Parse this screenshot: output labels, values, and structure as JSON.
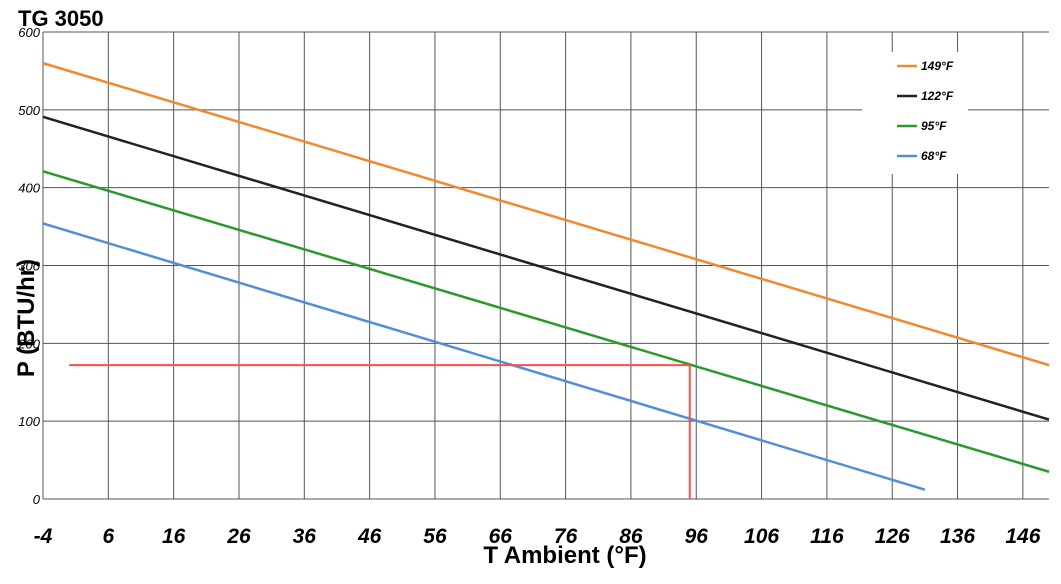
{
  "chart_data": {
    "type": "line",
    "title": "TG 3050",
    "xlabel": "T Ambient (°F)",
    "ylabel": "P (BTU/hr)",
    "xlim": [
      -4,
      150
    ],
    "ylim": [
      0,
      600
    ],
    "x_ticks": [
      -4,
      6,
      16,
      26,
      36,
      46,
      56,
      66,
      76,
      86,
      96,
      106,
      116,
      126,
      136,
      146
    ],
    "x_tick_labels": [
      "-4",
      "6",
      "16",
      "26",
      "36",
      "46",
      "56",
      "66",
      "76",
      "86",
      "96",
      "106",
      "116",
      "126",
      "136",
      "146"
    ],
    "y_ticks": [
      0,
      100,
      200,
      300,
      400,
      500,
      600
    ],
    "y_tick_labels": [
      "0",
      "100",
      "200",
      "300",
      "400",
      "500",
      "600"
    ],
    "grid": true,
    "legend_position": "top-right",
    "series": [
      {
        "name": "149°F",
        "color": "#f08a2c",
        "points": [
          [
            -4,
            560
          ],
          [
            150,
            172
          ]
        ]
      },
      {
        "name": "122°F",
        "color": "#222222",
        "points": [
          [
            -4,
            491
          ],
          [
            150,
            102
          ]
        ]
      },
      {
        "name": "95°F",
        "color": "#2a9a2a",
        "points": [
          [
            -4,
            421
          ],
          [
            150,
            35
          ]
        ]
      },
      {
        "name": "68°F",
        "color": "#4f8fd6",
        "points": [
          [
            -4,
            354
          ],
          [
            131,
            12
          ]
        ]
      }
    ],
    "reference_lines": [
      {
        "color": "#ff4d4d",
        "points": [
          [
            0,
            172
          ],
          [
            95,
            172
          ]
        ]
      },
      {
        "color": "#ff4d4d",
        "points": [
          [
            95,
            172
          ],
          [
            95,
            0
          ]
        ]
      }
    ]
  }
}
